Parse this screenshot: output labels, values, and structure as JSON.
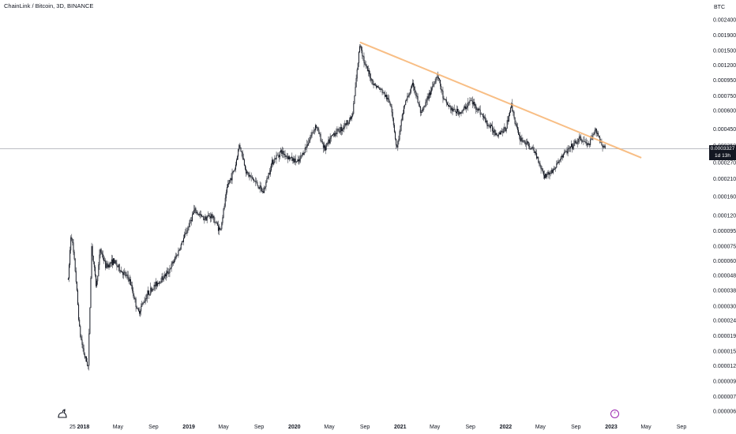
{
  "header": {
    "title": "ChainLink / Bitcoin, 3D, BINANCE"
  },
  "price_axis": {
    "unit": "BTC",
    "current_price": "0.0003327",
    "countdown": "1d 13h"
  },
  "colors": {
    "candles": "#131722",
    "trendline": "#f7b370",
    "price_line": "#9598a1",
    "event": "#9c27b0"
  },
  "icons": {
    "logo": "tradingview-dino-icon",
    "event": "lightning-event-icon"
  },
  "chart_data": {
    "type": "candlestick",
    "y_scale": "log",
    "ylim": [
      6e-06,
      0.0024
    ],
    "y_ticks": [
      "0.0024000",
      "0.0019000",
      "0.0015000",
      "0.0012000",
      "0.0009500",
      "0.0007500",
      "0.0006000",
      "0.0004500",
      "0.0003500",
      "0.0002700",
      "0.0002100",
      "0.0001600",
      "0.0001200",
      "0.0000950",
      "0.0000750",
      "0.0000600",
      "0.0000480",
      "0.0000380",
      "0.0000300",
      "0.0000240",
      "0.0000190",
      "0.0000150",
      "0.0000120",
      "0.0000095",
      "0.0000075",
      "0.0000060"
    ],
    "x_ticks": [
      {
        "label": "25",
        "bold": false
      },
      {
        "label": "2018",
        "bold": true
      },
      {
        "label": "May",
        "bold": false
      },
      {
        "label": "Sep",
        "bold": false
      },
      {
        "label": "2019",
        "bold": true
      },
      {
        "label": "May",
        "bold": false
      },
      {
        "label": "Sep",
        "bold": false
      },
      {
        "label": "2020",
        "bold": true
      },
      {
        "label": "May",
        "bold": false
      },
      {
        "label": "Sep",
        "bold": false
      },
      {
        "label": "2021",
        "bold": true
      },
      {
        "label": "May",
        "bold": false
      },
      {
        "label": "Sep",
        "bold": false
      },
      {
        "label": "2022",
        "bold": true
      },
      {
        "label": "May",
        "bold": false
      },
      {
        "label": "Sep",
        "bold": false
      },
      {
        "label": "2023",
        "bold": true
      },
      {
        "label": "May",
        "bold": false
      },
      {
        "label": "Sep",
        "bold": false
      }
    ],
    "price_trend": [
      [
        "2017-11-10",
        4.5e-05
      ],
      [
        "2017-11-20",
        9.5e-05
      ],
      [
        "2017-12-05",
        5e-05
      ],
      [
        "2017-12-20",
        2e-05
      ],
      [
        "2018-01-05",
        1.4e-05
      ],
      [
        "2018-01-18",
        1.2e-05
      ],
      [
        "2018-01-30",
        7.5e-05
      ],
      [
        "2018-02-15",
        4e-05
      ],
      [
        "2018-03-01",
        7.2e-05
      ],
      [
        "2018-03-20",
        5.5e-05
      ],
      [
        "2018-04-15",
        6e-05
      ],
      [
        "2018-05-10",
        5.2e-05
      ],
      [
        "2018-06-10",
        4.5e-05
      ],
      [
        "2018-07-10",
        2.7e-05
      ],
      [
        "2018-08-10",
        3.6e-05
      ],
      [
        "2018-09-15",
        4.3e-05
      ],
      [
        "2018-10-20",
        5e-05
      ],
      [
        "2018-11-20",
        6.5e-05
      ],
      [
        "2018-12-20",
        9e-05
      ],
      [
        "2019-01-20",
        0.00013
      ],
      [
        "2019-02-20",
        0.000115
      ],
      [
        "2019-03-20",
        0.00012
      ],
      [
        "2019-04-20",
        9.5e-05
      ],
      [
        "2019-05-15",
        0.00019
      ],
      [
        "2019-06-10",
        0.00025
      ],
      [
        "2019-06-25",
        0.00036
      ],
      [
        "2019-07-20",
        0.00023
      ],
      [
        "2019-08-20",
        0.0002
      ],
      [
        "2019-09-15",
        0.00017
      ],
      [
        "2019-10-15",
        0.00027
      ],
      [
        "2019-11-15",
        0.00032
      ],
      [
        "2019-12-15",
        0.00029
      ],
      [
        "2020-01-15",
        0.00027
      ],
      [
        "2020-02-15",
        0.00036
      ],
      [
        "2020-03-15",
        0.00048
      ],
      [
        "2020-04-15",
        0.00033
      ],
      [
        "2020-05-15",
        0.00042
      ],
      [
        "2020-06-15",
        0.00046
      ],
      [
        "2020-07-20",
        0.00055
      ],
      [
        "2020-08-15",
        0.0017
      ],
      [
        "2020-09-01",
        0.0012
      ],
      [
        "2020-10-01",
        0.0009
      ],
      [
        "2020-11-01",
        0.0008
      ],
      [
        "2020-12-01",
        0.00065
      ],
      [
        "2020-12-20",
        0.00033
      ],
      [
        "2021-01-15",
        0.00065
      ],
      [
        "2021-02-15",
        0.0009
      ],
      [
        "2021-03-15",
        0.00056
      ],
      [
        "2021-04-15",
        0.0008
      ],
      [
        "2021-05-10",
        0.00105
      ],
      [
        "2021-06-01",
        0.0007
      ],
      [
        "2021-07-01",
        0.0006
      ],
      [
        "2021-08-01",
        0.00058
      ],
      [
        "2021-09-01",
        0.0007
      ],
      [
        "2021-10-01",
        0.0006
      ],
      [
        "2021-11-01",
        0.00048
      ],
      [
        "2021-12-01",
        0.00042
      ],
      [
        "2022-01-01",
        0.00045
      ],
      [
        "2022-01-20",
        0.00066
      ],
      [
        "2022-02-15",
        0.0004
      ],
      [
        "2022-03-15",
        0.00036
      ],
      [
        "2022-04-15",
        0.00031
      ],
      [
        "2022-05-15",
        0.00022
      ],
      [
        "2022-06-15",
        0.00024
      ],
      [
        "2022-07-15",
        0.0003
      ],
      [
        "2022-08-15",
        0.00034
      ],
      [
        "2022-09-15",
        0.00039
      ],
      [
        "2022-10-15",
        0.00035
      ],
      [
        "2022-11-10",
        0.00045
      ],
      [
        "2022-11-25",
        0.00037
      ],
      [
        "2022-12-12",
        0.000333
      ]
    ],
    "trendline": {
      "start": [
        "2020-08-15",
        0.0017
      ],
      "end": [
        "2023-04-15",
        0.00029
      ]
    },
    "current_price_value": 0.0003327
  }
}
